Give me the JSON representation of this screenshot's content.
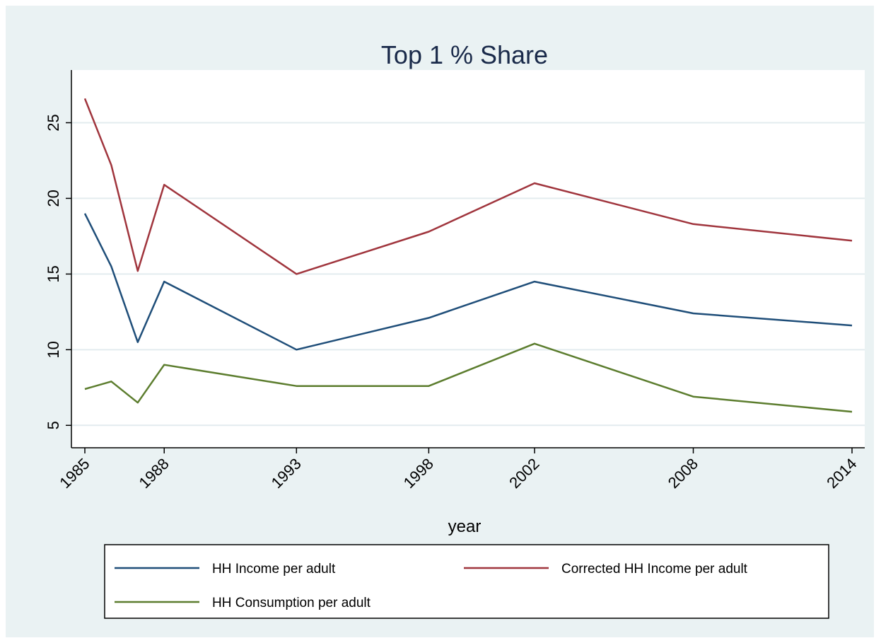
{
  "chart_data": {
    "type": "line",
    "title": "Top 1 % Share",
    "xlabel": "year",
    "ylabel": "",
    "x_ticks": [
      1985,
      1988,
      1993,
      1998,
      2002,
      2008,
      2014
    ],
    "y_ticks": [
      5,
      10,
      15,
      20,
      25
    ],
    "xlim": [
      1985,
      2014
    ],
    "ylim": [
      4.5,
      27.5
    ],
    "grid": true,
    "legend_position": "bottom",
    "x": [
      1985,
      1986,
      1987,
      1988,
      1993,
      1998,
      2002,
      2008,
      2014
    ],
    "series": [
      {
        "name": "HH Income per adult",
        "color": "#1f4e79",
        "values": [
          19.0,
          15.5,
          10.5,
          14.5,
          10.0,
          12.1,
          14.5,
          12.4,
          11.6
        ]
      },
      {
        "name": "Corrected HH Income per adult",
        "color": "#a0353d",
        "values": [
          26.6,
          22.2,
          15.2,
          20.9,
          15.0,
          17.8,
          21.0,
          18.3,
          17.2
        ]
      },
      {
        "name": "HH Consumption per adult",
        "color": "#5c7d2e",
        "values": [
          7.4,
          7.9,
          6.5,
          9.0,
          7.6,
          7.6,
          10.4,
          6.9,
          5.9
        ]
      }
    ]
  }
}
